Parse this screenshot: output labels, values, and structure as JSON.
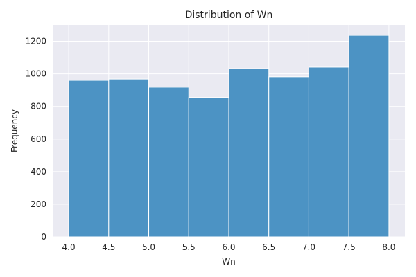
{
  "chart_data": {
    "type": "bar",
    "title": "Distribution of Wn",
    "xlabel": "Wn",
    "ylabel": "Frequency",
    "bins": [
      {
        "start": 4.0,
        "end": 4.5,
        "value": 960
      },
      {
        "start": 4.5,
        "end": 5.0,
        "value": 968
      },
      {
        "start": 5.0,
        "end": 5.5,
        "value": 918
      },
      {
        "start": 5.5,
        "end": 6.0,
        "value": 855
      },
      {
        "start": 6.0,
        "end": 6.5,
        "value": 1032
      },
      {
        "start": 6.5,
        "end": 7.0,
        "value": 982
      },
      {
        "start": 7.0,
        "end": 7.5,
        "value": 1041
      },
      {
        "start": 7.5,
        "end": 8.0,
        "value": 1236
      }
    ],
    "xlim": [
      3.8,
      8.2
    ],
    "ylim": [
      0,
      1300
    ],
    "xticks": [
      "4.0",
      "4.5",
      "5.0",
      "5.5",
      "6.0",
      "6.5",
      "7.0",
      "7.5",
      "8.0"
    ],
    "yticks": [
      "0",
      "200",
      "400",
      "600",
      "800",
      "1000",
      "1200"
    ],
    "grid": true,
    "colors": {
      "bar": "#4c93c4",
      "bar_edge": "#ffffff",
      "plot_background": "#eaeaf2",
      "grid": "#ffffff",
      "text": "#262626"
    }
  }
}
